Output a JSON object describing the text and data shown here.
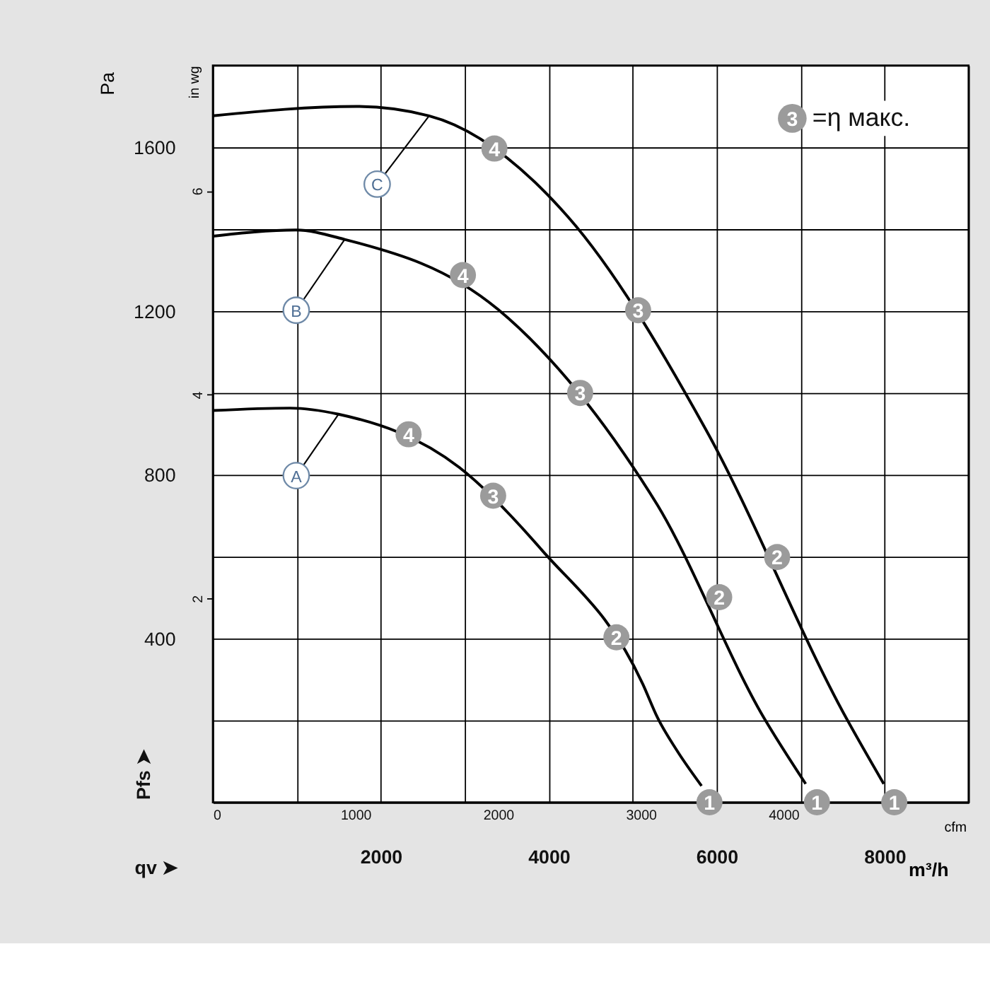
{
  "chart_data": {
    "type": "line",
    "xlabel": "m³/h",
    "x2label": "cfm",
    "ylabel": "Pa",
    "y2label": "in wg",
    "xlim": [
      0,
      9000
    ],
    "xticks": [
      {
        "value": 0,
        "label": null
      },
      {
        "value": 1000,
        "label": null
      },
      2000,
      {
        "value": 3000,
        "label": null
      },
      4000,
      {
        "value": 5000,
        "label": null
      },
      6000,
      {
        "value": 7000,
        "label": null
      },
      8000,
      {
        "value": 9000,
        "label": null
      }
    ],
    "x2lim": [
      0,
      5297
    ],
    "x2ticks": [
      0,
      1000,
      2000,
      3000,
      4000
    ],
    "ylim": [
      0,
      1800
    ],
    "yticks": [
      {
        "value": 0,
        "label": null
      },
      {
        "value": 200,
        "label": null
      },
      400,
      {
        "value": 600,
        "label": null
      },
      800,
      {
        "value": 1000,
        "label": null
      },
      1200,
      {
        "value": 1400,
        "label": null
      },
      1600,
      {
        "value": 1800,
        "label": null
      }
    ],
    "y2lim": [
      0,
      7.23
    ],
    "y2ticks": [
      2,
      4,
      6
    ],
    "grid": true,
    "legend": false,
    "line_style": "solid",
    "marker": "none",
    "series": [
      {
        "color": "#000000",
        "x": [
          0,
          920,
          1496,
          2935,
          3914,
          5122,
          5295,
          5525,
          5820
        ],
        "values": [
          957,
          963,
          948,
          818,
          617,
          288,
          207,
          127,
          40
        ]
      },
      {
        "color": "#000000",
        "x": [
          0,
          990,
          1570,
          3396,
          4892,
          5295,
          6561,
          7060
        ],
        "values": [
          1383,
          1398,
          1375,
          1204,
          853,
          726,
          207,
          45
        ]
      },
      {
        "color": "#000000",
        "x": [
          0,
          1712,
          2575,
          4230,
          5870,
          7540,
          7990
        ],
        "values": [
          1677,
          1700,
          1677,
          1430,
          911,
          207,
          45
        ]
      },
      {
        "type": "scatter",
        "marker": "circle",
        "color": "#9b9b9b",
        "x": [
          2331,
          3338,
          4806,
          5914,
          2978,
          4374,
          6030,
          7194,
          3353,
          5065,
          6720,
          8115
        ],
        "values": [
          899,
          749,
          403,
          0,
          1288,
          1000,
          501,
          0,
          1597,
          1202,
          599,
          0
        ]
      }
    ],
    "annotations": [
      "3 =η макс.",
      "Pfs ➤",
      "qv ➤",
      {
        "text": "A",
        "x": 993,
        "y": 798
      },
      {
        "text": "B",
        "x": 993,
        "y": 1202
      },
      {
        "text": "C",
        "x": 1957,
        "y": 1510
      },
      {
        "text": "4",
        "x": 2331,
        "y": 899
      },
      {
        "text": "3",
        "x": 3338,
        "y": 749
      },
      {
        "text": "2",
        "x": 4806,
        "y": 403
      },
      {
        "text": "1",
        "x": 5914,
        "y": 0
      },
      {
        "text": "4",
        "x": 2978,
        "y": 1288
      },
      {
        "text": "3",
        "x": 4374,
        "y": 1000
      },
      {
        "text": "2",
        "x": 6030,
        "y": 501
      },
      {
        "text": "1",
        "x": 7194,
        "y": 0
      },
      {
        "text": "4",
        "x": 3353,
        "y": 1597
      },
      {
        "text": "3",
        "x": 5065,
        "y": 1202
      },
      {
        "text": "2",
        "x": 6720,
        "y": 599
      },
      {
        "text": "1",
        "x": 8115,
        "y": 0
      }
    ]
  }
}
